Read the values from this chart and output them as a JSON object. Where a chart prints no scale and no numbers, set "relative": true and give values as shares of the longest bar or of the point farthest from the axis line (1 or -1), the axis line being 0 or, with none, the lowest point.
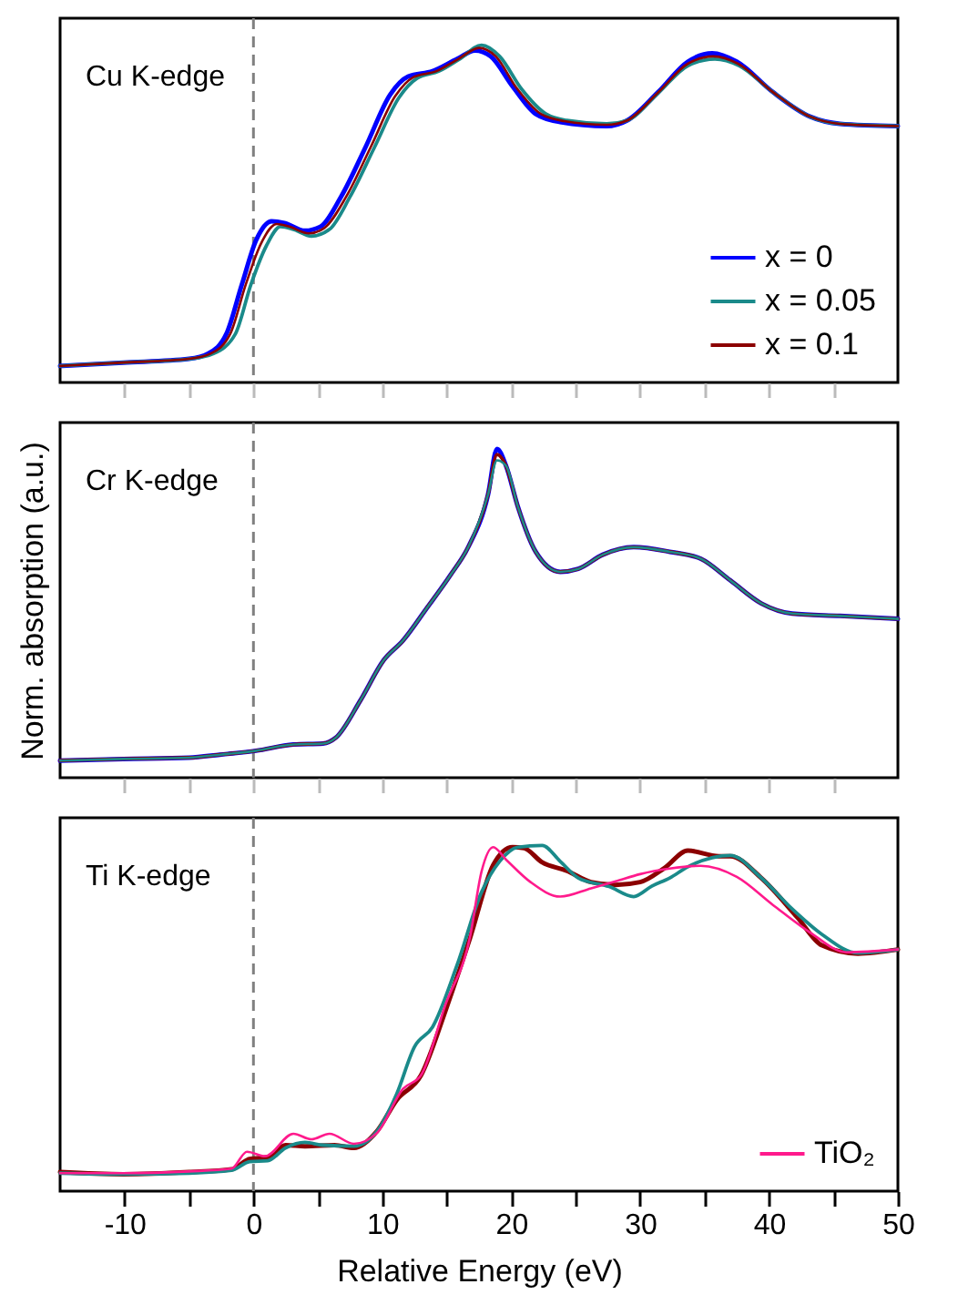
{
  "chart_data": [
    {
      "type": "line",
      "relative": true,
      "xlim": [
        -15,
        50
      ],
      "xticks": [
        {
          "value": -10,
          "label": null
        },
        {
          "value": -5,
          "label": null
        },
        {
          "value": 0,
          "label": null
        },
        {
          "value": 5,
          "label": null
        },
        {
          "value": 10,
          "label": null
        },
        {
          "value": 15,
          "label": null
        },
        {
          "value": 20,
          "label": null
        },
        {
          "value": 25,
          "label": null
        },
        {
          "value": 30,
          "label": null
        },
        {
          "value": 35,
          "label": null
        },
        {
          "value": 40,
          "label": null
        },
        {
          "value": 45,
          "label": null
        }
      ],
      "tick_labels": false,
      "legend": "bottom right",
      "annotations": [
        "Cu K-edge"
      ],
      "ref_lines": [
        {
          "axis": "x",
          "value": 0,
          "color": "#808080",
          "line_style": "dashed"
        }
      ],
      "series": [
        {
          "name": "x = 0",
          "color": "#0000ff",
          "x": [
            -15.0,
            -10.1,
            -5.0,
            -3.5,
            -2.1,
            -0.9,
            0.2,
            1.4,
            2.4,
            4.0,
            5.2,
            6.8,
            8.7,
            10.6,
            12.0,
            13.9,
            15.8,
            17.2,
            18.4,
            20.1,
            21.9,
            23.8,
            27.4,
            29.0,
            31.4,
            33.7,
            35.6,
            37.5,
            40.3,
            43.2,
            45.5,
            50.0
          ],
          "values": [
            0.049,
            0.059,
            0.07,
            0.086,
            0.144,
            0.29,
            0.421,
            0.478,
            0.473,
            0.45,
            0.462,
            0.551,
            0.698,
            0.853,
            0.907,
            0.923,
            0.959,
            0.984,
            0.967,
            0.878,
            0.796,
            0.772,
            0.76,
            0.777,
            0.861,
            0.951,
            0.976,
            0.951,
            0.861,
            0.788,
            0.767,
            0.76
          ]
        },
        {
          "name": "x = 0.05",
          "color": "#1a8a8a",
          "x": [
            -15.0,
            -10.1,
            -5.0,
            -3.1,
            -1.4,
            -0.2,
            1.0,
            2.1,
            3.1,
            4.5,
            5.9,
            7.5,
            9.4,
            11.3,
            12.7,
            14.4,
            16.0,
            17.7,
            19.1,
            20.8,
            22.7,
            24.3,
            27.4,
            29.0,
            31.4,
            33.7,
            35.8,
            37.7,
            40.3,
            43.2,
            45.5,
            50.0
          ],
          "values": [
            0.049,
            0.059,
            0.07,
            0.086,
            0.144,
            0.29,
            0.405,
            0.462,
            0.454,
            0.434,
            0.454,
            0.551,
            0.698,
            0.845,
            0.902,
            0.923,
            0.959,
            1.0,
            0.967,
            0.87,
            0.796,
            0.777,
            0.767,
            0.777,
            0.858,
            0.939,
            0.959,
            0.939,
            0.861,
            0.788,
            0.767,
            0.76
          ]
        },
        {
          "name": "x = 0.1",
          "color": "#8b0000",
          "x": [
            -15.0,
            -10.1,
            -5.0,
            -3.3,
            -1.8,
            -0.6,
            0.6,
            1.8,
            2.7,
            4.3,
            5.5,
            7.2,
            9.1,
            11.0,
            12.4,
            14.2,
            15.9,
            17.5,
            18.8,
            20.4,
            22.3,
            24.1,
            27.4,
            29.0,
            31.4,
            33.7,
            35.7,
            37.6,
            40.3,
            43.2,
            45.5,
            50.0
          ],
          "values": [
            0.049,
            0.059,
            0.07,
            0.086,
            0.144,
            0.29,
            0.413,
            0.47,
            0.463,
            0.442,
            0.458,
            0.551,
            0.698,
            0.849,
            0.905,
            0.923,
            0.959,
            0.992,
            0.967,
            0.874,
            0.796,
            0.775,
            0.764,
            0.777,
            0.86,
            0.945,
            0.967,
            0.945,
            0.861,
            0.788,
            0.767,
            0.76
          ]
        }
      ]
    },
    {
      "type": "line",
      "relative": true,
      "ylabel": "Norm. absorption (a.u.)",
      "xlim": [
        -15,
        50
      ],
      "xticks": [
        {
          "value": -10,
          "label": null
        },
        {
          "value": -5,
          "label": null
        },
        {
          "value": 0,
          "label": null
        },
        {
          "value": 5,
          "label": null
        },
        {
          "value": 10,
          "label": null
        },
        {
          "value": 15,
          "label": null
        },
        {
          "value": 20,
          "label": null
        },
        {
          "value": 25,
          "label": null
        },
        {
          "value": 30,
          "label": null
        },
        {
          "value": 35,
          "label": null
        },
        {
          "value": 40,
          "label": null
        },
        {
          "value": 45,
          "label": null
        }
      ],
      "tick_labels": false,
      "annotations": [
        "Cr K-edge"
      ],
      "ref_lines": [
        {
          "axis": "x",
          "value": 0,
          "color": "#808080",
          "line_style": "dashed"
        }
      ],
      "x": [
        -15.0,
        -10.1,
        -5.0,
        -2.6,
        0.2,
        3.1,
        5.4,
        6.4,
        8.3,
        10.1,
        11.6,
        13.4,
        15.3,
        16.7,
        18.2,
        18.9,
        19.6,
        20.5,
        21.9,
        23.8,
        25.2,
        27.1,
        29.5,
        32.3,
        34.7,
        37.0,
        39.4,
        41.8,
        45.5,
        50.0
      ],
      "series": [
        {
          "color": "#0000ff",
          "values": [
            0.052,
            0.057,
            0.061,
            0.07,
            0.082,
            0.101,
            0.104,
            0.122,
            0.235,
            0.357,
            0.417,
            0.513,
            0.617,
            0.704,
            0.861,
            1.0,
            0.948,
            0.826,
            0.687,
            0.626,
            0.635,
            0.678,
            0.701,
            0.687,
            0.666,
            0.6,
            0.53,
            0.499,
            0.492,
            0.483
          ]
        },
        {
          "color": "#8b0000",
          "values": [
            0.052,
            0.057,
            0.061,
            0.07,
            0.082,
            0.101,
            0.104,
            0.122,
            0.235,
            0.357,
            0.417,
            0.513,
            0.617,
            0.704,
            0.861,
            0.983,
            0.948,
            0.826,
            0.687,
            0.626,
            0.635,
            0.678,
            0.701,
            0.687,
            0.666,
            0.6,
            0.53,
            0.499,
            0.492,
            0.483
          ]
        },
        {
          "color": "#1a8a8a",
          "values": [
            0.052,
            0.057,
            0.061,
            0.07,
            0.082,
            0.101,
            0.104,
            0.122,
            0.235,
            0.357,
            0.417,
            0.513,
            0.617,
            0.704,
            0.861,
            0.965,
            0.948,
            0.826,
            0.687,
            0.626,
            0.635,
            0.678,
            0.701,
            0.687,
            0.666,
            0.6,
            0.53,
            0.499,
            0.492,
            0.483
          ]
        }
      ]
    },
    {
      "type": "line",
      "relative": true,
      "xlabel": "Relative Energy (eV)",
      "xlim": [
        -15,
        50
      ],
      "xticks": [
        -10,
        {
          "value": -5,
          "label": null
        },
        0,
        {
          "value": 5,
          "label": null
        },
        10,
        {
          "value": 15,
          "label": null
        },
        20,
        {
          "value": 25,
          "label": null
        },
        30,
        {
          "value": 35,
          "label": null
        },
        40,
        {
          "value": 45,
          "label": null
        },
        50
      ],
      "tick_labels": "x",
      "legend": "bottom right",
      "annotations": [
        "Ti K-edge"
      ],
      "ref_lines": [
        {
          "axis": "x",
          "value": 0,
          "color": "#808080",
          "line_style": "dashed"
        }
      ],
      "series": [
        {
          "color": "#8b0000",
          "x": [
            -15.0,
            -10.1,
            -5.0,
            -1.7,
            -0.3,
            1.1,
            2.5,
            4.0,
            6.3,
            7.8,
            9.6,
            11.1,
            13.0,
            14.9,
            16.8,
            18.6,
            20.1,
            21.0,
            22.4,
            24.3,
            26.2,
            28.1,
            30.0,
            31.9,
            33.7,
            36.1,
            37.0,
            39.4,
            42.2,
            44.1,
            46.9,
            50.0
          ],
          "values": [
            0.055,
            0.049,
            0.055,
            0.063,
            0.093,
            0.098,
            0.133,
            0.13,
            0.133,
            0.125,
            0.174,
            0.263,
            0.335,
            0.522,
            0.732,
            0.943,
            0.995,
            0.992,
            0.951,
            0.927,
            0.894,
            0.886,
            0.894,
            0.935,
            0.985,
            0.969,
            0.969,
            0.906,
            0.792,
            0.711,
            0.687,
            0.699
          ]
        },
        {
          "color": "#1a8a8a",
          "x": [
            -15.0,
            -10.1,
            -5.0,
            -1.7,
            -0.3,
            1.1,
            2.5,
            4.0,
            5.4,
            7.8,
            9.6,
            11.1,
            12.5,
            13.9,
            15.8,
            17.7,
            19.1,
            20.5,
            22.4,
            23.8,
            25.2,
            27.6,
            29.5,
            30.9,
            32.3,
            33.7,
            37.0,
            39.4,
            41.8,
            44.1,
            46.9,
            50.0
          ],
          "values": [
            0.052,
            0.049,
            0.052,
            0.06,
            0.085,
            0.088,
            0.125,
            0.141,
            0.133,
            0.13,
            0.174,
            0.28,
            0.418,
            0.475,
            0.654,
            0.865,
            0.954,
            0.995,
            1.0,
            0.954,
            0.906,
            0.881,
            0.852,
            0.882,
            0.906,
            0.938,
            0.971,
            0.906,
            0.816,
            0.743,
            0.689,
            0.699
          ]
        },
        {
          "name": "TiO₂",
          "color": "#ff1a8c",
          "x": [
            -15.0,
            -10.1,
            -5.0,
            -1.7,
            -0.5,
            0.9,
            3.1,
            4.5,
            5.9,
            7.8,
            9.6,
            11.6,
            13.0,
            14.9,
            16.8,
            17.7,
            18.6,
            19.6,
            21.5,
            23.8,
            26.2,
            28.1,
            30.0,
            32.3,
            34.7,
            37.5,
            40.3,
            43.2,
            46.0,
            50.0
          ],
          "values": [
            0.052,
            0.052,
            0.057,
            0.065,
            0.114,
            0.101,
            0.166,
            0.15,
            0.166,
            0.137,
            0.169,
            0.296,
            0.335,
            0.54,
            0.735,
            0.925,
            0.995,
            0.959,
            0.894,
            0.852,
            0.876,
            0.896,
            0.917,
            0.933,
            0.941,
            0.909,
            0.828,
            0.748,
            0.691,
            0.699
          ]
        }
      ]
    }
  ]
}
